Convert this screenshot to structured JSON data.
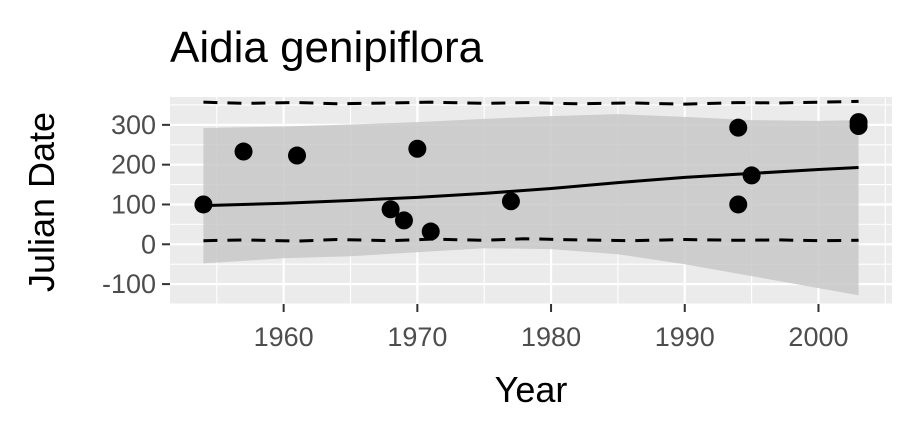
{
  "chart_data": {
    "type": "scatter",
    "title": "Aidia genipiflora",
    "xlabel": "Year",
    "ylabel": "Julian Date",
    "xlim": [
      1951.5,
      2005.5
    ],
    "ylim": [
      -150,
      370
    ],
    "x_ticks": [
      1960,
      1970,
      1980,
      1990,
      2000
    ],
    "y_ticks": [
      -100,
      0,
      100,
      200,
      300
    ],
    "points": [
      {
        "x": 1954,
        "y": 100
      },
      {
        "x": 1957,
        "y": 233
      },
      {
        "x": 1961,
        "y": 223
      },
      {
        "x": 1968,
        "y": 88
      },
      {
        "x": 1969,
        "y": 60
      },
      {
        "x": 1970,
        "y": 240
      },
      {
        "x": 1971,
        "y": 32
      },
      {
        "x": 1977,
        "y": 108
      },
      {
        "x": 1994,
        "y": 293
      },
      {
        "x": 1994,
        "y": 100
      },
      {
        "x": 1995,
        "y": 173
      },
      {
        "x": 2003,
        "y": 307
      },
      {
        "x": 2003,
        "y": 297
      }
    ],
    "trend_line": {
      "x": [
        1954,
        1960,
        1965,
        1970,
        1975,
        1980,
        1985,
        1990,
        1995,
        2000,
        2003
      ],
      "y": [
        97,
        103,
        110,
        118,
        128,
        140,
        155,
        168,
        178,
        188,
        193
      ]
    },
    "confidence_band": {
      "x": [
        1954,
        1960,
        1965,
        1970,
        1975,
        1980,
        1985,
        1990,
        1995,
        2000,
        2003
      ],
      "upper": [
        292,
        296,
        301,
        307,
        315,
        322,
        327,
        320,
        312,
        310,
        312
      ],
      "lower": [
        -48,
        -35,
        -30,
        -20,
        -10,
        -12,
        -25,
        -50,
        -80,
        -110,
        -128
      ]
    },
    "upper_dashed": {
      "x": [
        1954,
        1957,
        1961,
        1964,
        1968,
        1971,
        1975,
        1978,
        1982,
        1986,
        1990,
        1994,
        1997,
        2000,
        2003
      ],
      "y": [
        357,
        354,
        356,
        353,
        355,
        357,
        354,
        356,
        353,
        355,
        352,
        356,
        355,
        357,
        359
      ]
    },
    "lower_dashed": {
      "x": [
        1954,
        1957,
        1961,
        1964,
        1968,
        1971,
        1975,
        1978,
        1982,
        1986,
        1990,
        1994,
        1997,
        2000,
        2003
      ],
      "y": [
        9,
        11,
        8,
        12,
        9,
        13,
        10,
        14,
        11,
        9,
        12,
        10,
        11,
        9,
        10
      ]
    },
    "grid": true,
    "legend": "none",
    "colors": {
      "panel": "#ebebeb",
      "grid": "#ffffff",
      "band": "#c8c8c8",
      "points": "#000000",
      "line": "#000000"
    }
  }
}
